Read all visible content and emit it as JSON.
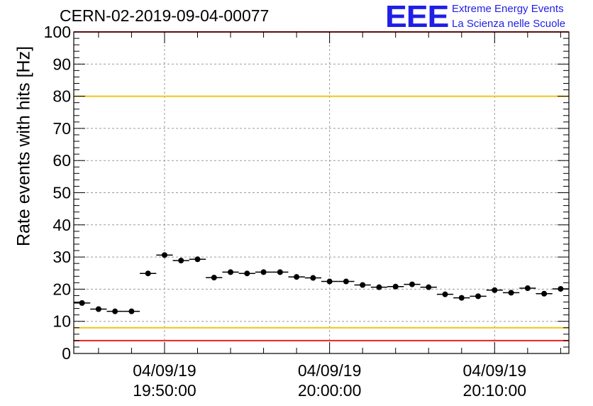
{
  "title": "CERN-02-2019-09-04-00077",
  "logo": {
    "mark": "EEE",
    "line1": "Extreme Energy Events",
    "line2": "La Scienza nelle Scuole",
    "color": "#1f1fe6"
  },
  "chart_data": {
    "type": "scatter",
    "title": "CERN-02-2019-09-04-00077",
    "xlabel": "",
    "ylabel": "Rate events with hits [Hz]",
    "ylim": [
      0,
      100
    ],
    "yticks": [
      0,
      10,
      20,
      30,
      40,
      50,
      60,
      70,
      80,
      90,
      100
    ],
    "xlim": [
      "19:44:30",
      "20:14:30"
    ],
    "xticks": [
      {
        "time": "19:50:00",
        "date": "04/09/19",
        "clock": "19:50:00"
      },
      {
        "time": "20:00:00",
        "date": "04/09/19",
        "clock": "20:00:00"
      },
      {
        "time": "20:10:00",
        "date": "04/09/19",
        "clock": "20:10:00"
      }
    ],
    "grid": true,
    "bin_width_seconds": 60,
    "reference_lines": [
      {
        "y": 100,
        "color": "#e8221e"
      },
      {
        "y": 80,
        "color": "#f0c419"
      },
      {
        "y": 8,
        "color": "#f0c419"
      },
      {
        "y": 4,
        "color": "#e8221e"
      }
    ],
    "series": [
      {
        "marker_color": "#000000",
        "points": [
          {
            "x": "19:45:00",
            "y": 15.7
          },
          {
            "x": "19:46:00",
            "y": 13.8
          },
          {
            "x": "19:47:00",
            "y": 13.1
          },
          {
            "x": "19:48:00",
            "y": 13.1
          },
          {
            "x": "19:49:00",
            "y": 24.9
          },
          {
            "x": "19:50:00",
            "y": 30.6
          },
          {
            "x": "19:51:00",
            "y": 28.9
          },
          {
            "x": "19:52:00",
            "y": 29.3
          },
          {
            "x": "19:53:00",
            "y": 23.6
          },
          {
            "x": "19:54:00",
            "y": 25.3
          },
          {
            "x": "19:55:00",
            "y": 24.9
          },
          {
            "x": "19:56:00",
            "y": 25.3
          },
          {
            "x": "19:57:00",
            "y": 25.3
          },
          {
            "x": "19:58:00",
            "y": 23.8
          },
          {
            "x": "19:59:00",
            "y": 23.5
          },
          {
            "x": "20:00:00",
            "y": 22.4
          },
          {
            "x": "20:01:00",
            "y": 22.4
          },
          {
            "x": "20:02:00",
            "y": 21.3
          },
          {
            "x": "20:03:00",
            "y": 20.6
          },
          {
            "x": "20:04:00",
            "y": 20.8
          },
          {
            "x": "20:05:00",
            "y": 21.5
          },
          {
            "x": "20:06:00",
            "y": 20.6
          },
          {
            "x": "20:07:00",
            "y": 18.4
          },
          {
            "x": "20:08:00",
            "y": 17.3
          },
          {
            "x": "20:09:00",
            "y": 17.8
          },
          {
            "x": "20:10:00",
            "y": 19.7
          },
          {
            "x": "20:11:00",
            "y": 18.9
          },
          {
            "x": "20:12:00",
            "y": 20.3
          },
          {
            "x": "20:13:00",
            "y": 18.6
          },
          {
            "x": "20:14:00",
            "y": 20.1
          }
        ]
      }
    ]
  }
}
